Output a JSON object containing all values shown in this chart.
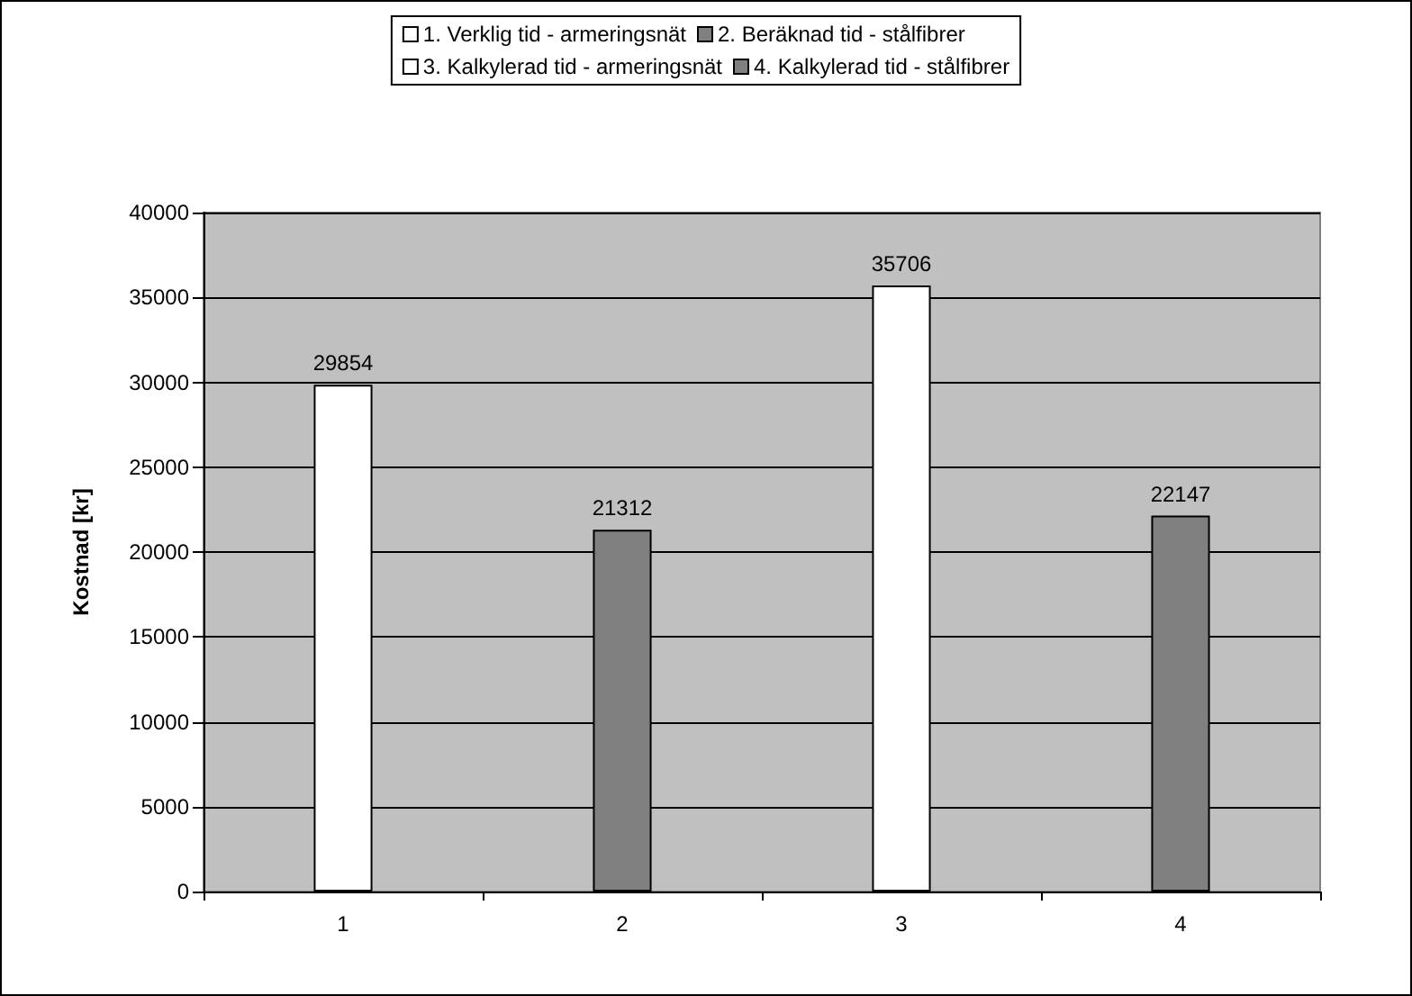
{
  "chart_data": {
    "type": "bar",
    "ylabel": "Kostnad [kr]",
    "categories": [
      "1",
      "2",
      "3",
      "4"
    ],
    "stacked": true,
    "series": [
      {
        "name": "1. Verklig tid - armeringsnät",
        "color": "#ffffff",
        "values": [
          29854,
          null,
          null,
          null
        ]
      },
      {
        "name": "2. Beräknad tid - stålfibrer",
        "color": "#808080",
        "values": [
          null,
          21312,
          null,
          null
        ]
      },
      {
        "name": "3. Kalkylerad tid - armeringsnät",
        "color": "#ffffff",
        "values": [
          null,
          null,
          35706,
          null
        ]
      },
      {
        "name": "4. Kalkylerad tid - stålfibrer",
        "color": "#808080",
        "values": [
          null,
          null,
          null,
          22147
        ]
      }
    ],
    "ylim": [
      0,
      40000
    ],
    "yticks": [
      0,
      5000,
      10000,
      15000,
      20000,
      25000,
      30000,
      35000,
      40000
    ],
    "grid": "y",
    "legend": "top",
    "data_labels": true
  }
}
